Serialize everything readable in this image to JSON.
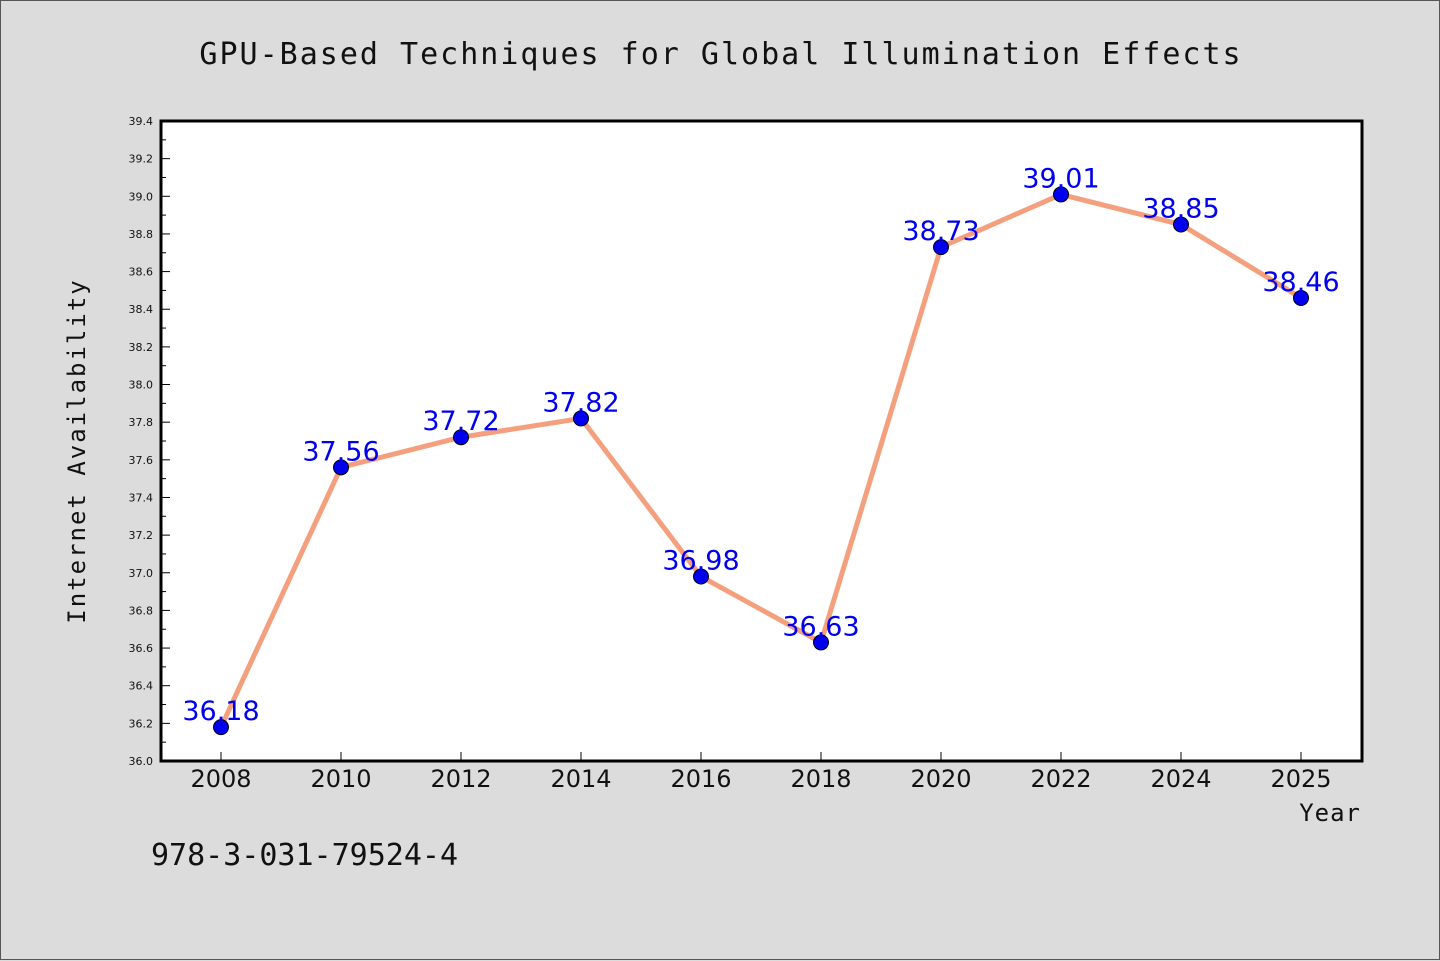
{
  "chart_data": {
    "type": "line",
    "title": "GPU-Based Techniques for Global Illumination Effects",
    "xlabel": "Year",
    "ylabel": "Internet Availability",
    "categories": [
      "2008",
      "2010",
      "2012",
      "2014",
      "2016",
      "2018",
      "2020",
      "2022",
      "2024",
      "2025"
    ],
    "series": [
      {
        "values": [
          36.18,
          37.56,
          37.72,
          37.82,
          36.98,
          36.63,
          38.73,
          39.01,
          38.85,
          38.46
        ]
      }
    ],
    "data_labels": [
      "36.18",
      "37.56",
      "37.72",
      "37.82",
      "36.98",
      "36.63",
      "38.73",
      "39.01",
      "38.85",
      "38.46"
    ],
    "ylim": [
      36.0,
      39.4
    ],
    "yticks": [
      "36.0",
      "36.2",
      "36.4",
      "36.6",
      "36.8",
      "37.0",
      "37.2",
      "37.4",
      "37.6",
      "37.8",
      "38.0",
      "38.2",
      "38.4",
      "38.6",
      "38.8",
      "39.0",
      "39.2",
      "39.4"
    ],
    "grid": false,
    "legend": "none",
    "colors": {
      "line": "#f4a07e",
      "marker": "#0000ee",
      "label": "#0000ee",
      "background": "#dcdcdc",
      "plot_background": "#ffffff"
    }
  },
  "footer": {
    "isbn": "978-3-031-79524-4"
  }
}
